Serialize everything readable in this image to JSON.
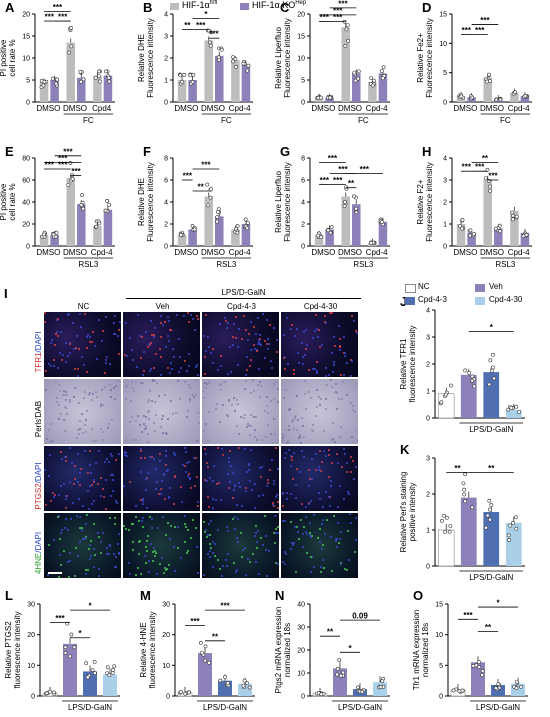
{
  "legend_top": {
    "items": [
      {
        "label": "HIF-1α",
        "sup": "fl/fl",
        "color": "#bdbdbd"
      },
      {
        "label": "HIF-1α KO",
        "sup": "Hep",
        "color": "#8e80b8"
      }
    ]
  },
  "microscopy": {
    "panel": "I",
    "group_label": "LPS/D-GalN",
    "columns": [
      "NC",
      "Veh",
      "Cpd-4-3",
      "Cpd-4-30"
    ],
    "rows": [
      {
        "label_parts": [
          {
            "t": "TFR1",
            "c": "#d62728"
          },
          {
            "t": "/DAPI",
            "c": "#1f3fbf"
          }
        ],
        "kind": "tfr1"
      },
      {
        "label_parts": [
          {
            "t": "Perls'DAB",
            "c": "#000000"
          }
        ],
        "kind": "perls"
      },
      {
        "label_parts": [
          {
            "t": "PTGS2",
            "c": "#d62728"
          },
          {
            "t": "/DAPI",
            "c": "#1f3fbf"
          }
        ],
        "kind": "ptgs2"
      },
      {
        "label_parts": [
          {
            "t": "4HNE",
            "c": "#2ca02c"
          },
          {
            "t": "/DAPI",
            "c": "#1f3fbf"
          }
        ],
        "kind": "hne"
      }
    ]
  },
  "legend_bottom": {
    "items": [
      {
        "label": "NC",
        "color": "#ffffff"
      },
      {
        "label": "Veh",
        "color": "#8e80b8"
      },
      {
        "label": "Cpd-4-3",
        "color": "#4f6fb0"
      },
      {
        "label": "Cpd-4-30",
        "color": "#a9d0e8"
      }
    ]
  },
  "chart_data": [
    {
      "panel": "A",
      "type": "bar",
      "ylabel": "PI positive cell rate %",
      "ylim": [
        0,
        20
      ],
      "yticks": [
        0,
        5,
        10,
        15,
        20
      ],
      "categories": [
        "DMSO",
        "DMSO",
        "Cpd4"
      ],
      "group_label": "FC",
      "series": [
        {
          "name": "HIF-1α fl/fl",
          "values": [
            4.5,
            13.5,
            6.0
          ]
        },
        {
          "name": "HIF-1α KO Hep",
          "values": [
            5.0,
            5.5,
            6.0
          ]
        }
      ],
      "significance": [
        "***",
        "***",
        "***"
      ]
    },
    {
      "panel": "B",
      "type": "bar",
      "ylabel": "Relative DHE Fluorescence intensity",
      "ylim": [
        0,
        4
      ],
      "yticks": [
        0,
        1,
        2,
        3,
        4
      ],
      "categories": [
        "DMSO",
        "DMSO",
        "Cpd-4"
      ],
      "group_label": "FC",
      "series": [
        {
          "name": "HIF-1α fl/fl",
          "values": [
            1.0,
            2.8,
            1.9
          ]
        },
        {
          "name": "HIF-1α KO Hep",
          "values": [
            1.0,
            2.1,
            1.7
          ]
        }
      ],
      "significance": [
        "**",
        "***",
        "***",
        "*"
      ]
    },
    {
      "panel": "C",
      "type": "bar",
      "ylabel": "Relative Liperfluo Fluorescence intensity",
      "ylim": [
        0,
        20
      ],
      "yticks": [
        0,
        5,
        10,
        15,
        20
      ],
      "categories": [
        "DMSO",
        "DMSO",
        "Cpd-4"
      ],
      "group_label": "FC",
      "series": [
        {
          "name": "HIF-1α fl/fl",
          "values": [
            1.0,
            17.0,
            4.5
          ]
        },
        {
          "name": "HIF-1α KO Hep",
          "values": [
            1.0,
            6.5,
            6.5
          ]
        }
      ],
      "significance": [
        "***",
        "***",
        "***",
        "***"
      ]
    },
    {
      "panel": "D",
      "type": "bar",
      "ylabel": "Relative Fe2+ Fluorescence intensity",
      "ylim": [
        0,
        15
      ],
      "yticks": [
        0,
        5,
        10,
        15
      ],
      "categories": [
        "DMSO",
        "DMSO",
        "Cpd-4"
      ],
      "group_label": "FC",
      "series": [
        {
          "name": "HIF-1α fl/fl",
          "values": [
            1.0,
            4.2,
            1.6
          ]
        },
        {
          "name": "HIF-1α KO Hep",
          "values": [
            0.8,
            0.5,
            1.0
          ]
        }
      ],
      "significance": [
        "***",
        "***",
        "***"
      ]
    },
    {
      "panel": "E",
      "type": "bar",
      "ylabel": "PI positive cell rate %",
      "ylim": [
        0,
        80
      ],
      "yticks": [
        0,
        20,
        40,
        60,
        80
      ],
      "categories": [
        "DMSO",
        "DMSO",
        "Cpd-4"
      ],
      "group_label": "RSL3",
      "series": [
        {
          "name": "HIF-1α fl/fl",
          "values": [
            10,
            62,
            18
          ]
        },
        {
          "name": "HIF-1α KO Hep",
          "values": [
            10,
            38,
            33
          ]
        }
      ],
      "significance": [
        "***",
        "***",
        "***",
        "***",
        "***"
      ]
    },
    {
      "panel": "F",
      "type": "bar",
      "ylabel": "Relative DHE Fluorescence intensity",
      "ylim": [
        0,
        8
      ],
      "yticks": [
        0,
        2,
        4,
        6,
        8
      ],
      "categories": [
        "DMSO",
        "DMSO",
        "Cpd-4"
      ],
      "group_label": "RSL3",
      "series": [
        {
          "name": "HIF-1α fl/fl",
          "values": [
            1.0,
            4.5,
            1.5
          ]
        },
        {
          "name": "HIF-1α KO Hep",
          "values": [
            1.5,
            2.7,
            2.0
          ]
        }
      ],
      "significance": [
        "***",
        "**",
        "***"
      ]
    },
    {
      "panel": "G",
      "type": "bar",
      "ylabel": "Relative Liperfluo Fluorescence intensity",
      "ylim": [
        0,
        8
      ],
      "yticks": [
        0,
        2,
        4,
        6,
        8
      ],
      "categories": [
        "DMSO",
        "DMSO",
        "Cpd-4"
      ],
      "group_label": "RSL3",
      "series": [
        {
          "name": "HIF-1α fl/fl",
          "values": [
            1.0,
            4.5,
            0.3
          ]
        },
        {
          "name": "HIF-1α KO Hep",
          "values": [
            1.5,
            3.8,
            2.2
          ]
        }
      ],
      "significance": [
        "***",
        "***",
        "**",
        "***",
        "***",
        "***"
      ]
    },
    {
      "panel": "H",
      "type": "bar",
      "ylabel": "Relative F2+ Fluorescence intensity",
      "ylim": [
        0,
        4
      ],
      "yticks": [
        0,
        1,
        2,
        3,
        4
      ],
      "categories": [
        "DMSO",
        "DMSO",
        "Cpd-4"
      ],
      "group_label": "RSL3",
      "series": [
        {
          "name": "HIF-1α fl/fl",
          "values": [
            1.0,
            3.0,
            1.6
          ]
        },
        {
          "name": "HIF-1α KO Hep",
          "values": [
            0.6,
            0.8,
            0.6
          ]
        }
      ],
      "significance": [
        "***",
        "***",
        "**",
        "***"
      ]
    },
    {
      "panel": "J",
      "type": "bar",
      "ylabel": "Relative TFR1 fluorescence intensity",
      "ylim": [
        0,
        4
      ],
      "yticks": [
        0,
        1,
        2,
        3,
        4
      ],
      "categories": [
        "NC",
        "Veh",
        "Cpd-4-3",
        "Cpd-4-30"
      ],
      "group_label": "LPS/D-GalN",
      "values": [
        0.9,
        1.6,
        1.7,
        0.3
      ],
      "significance": [
        "*"
      ]
    },
    {
      "panel": "K",
      "type": "bar",
      "ylabel": "Relative Perl's staining positive intensity",
      "ylim": [
        0,
        3
      ],
      "yticks": [
        0,
        1,
        2,
        3
      ],
      "categories": [
        "NC",
        "Veh",
        "Cpd-4-3",
        "Cpd-4-30"
      ],
      "group_label": "LPS/D-GalN",
      "values": [
        1.0,
        1.9,
        1.5,
        1.2
      ],
      "significance": [
        "**",
        "**"
      ]
    },
    {
      "panel": "L",
      "type": "bar",
      "ylabel": "Relative PTGS2 fluorescence intensity",
      "ylim": [
        0,
        30
      ],
      "yticks": [
        0,
        10,
        20,
        30
      ],
      "categories": [
        "NC",
        "Veh",
        "Cpd-4-3",
        "Cpd-4-30"
      ],
      "group_label": "LPS/D-GalN",
      "values": [
        1.0,
        17.0,
        8.0,
        7.0
      ],
      "significance": [
        "***",
        "*",
        "*"
      ]
    },
    {
      "panel": "M",
      "type": "bar",
      "ylabel": "Relative 4-HNE fluorescence intensity",
      "ylim": [
        0,
        30
      ],
      "yticks": [
        0,
        10,
        20,
        30
      ],
      "categories": [
        "NC",
        "Veh",
        "Cpd-4-3",
        "Cpd-4-30"
      ],
      "group_label": "LPS/D-GalN",
      "values": [
        1.0,
        14.0,
        5.0,
        4.0
      ],
      "significance": [
        "***",
        "**",
        "***"
      ]
    },
    {
      "panel": "N",
      "type": "bar",
      "ylabel": "Ptgs2 mRNA expression normalized 18s",
      "ylim": [
        0,
        40
      ],
      "yticks": [
        0,
        10,
        20,
        30,
        40
      ],
      "categories": [
        "NC",
        "Veh",
        "Cpd-4-3",
        "Cpd-4-30"
      ],
      "group_label": "LPS/D-GalN",
      "values": [
        1.0,
        12.0,
        3.0,
        6.0
      ],
      "significance": [
        "**",
        "*",
        "0.09"
      ]
    },
    {
      "panel": "O",
      "type": "bar",
      "ylabel": "Tfr1 mRNA expression normalized 18s",
      "ylim": [
        0,
        15
      ],
      "yticks": [
        0,
        5,
        10,
        15
      ],
      "categories": [
        "NC",
        "Veh",
        "Cpd-4-3",
        "Cpd-4-30"
      ],
      "group_label": "LPS/D-GalN",
      "values": [
        1.0,
        5.5,
        1.8,
        2.0
      ],
      "significance": [
        "***",
        "**",
        "*"
      ]
    }
  ]
}
